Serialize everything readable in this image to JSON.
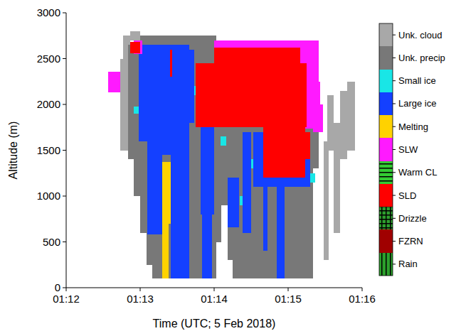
{
  "chart_data": {
    "type": "heatmap",
    "x_label": "Time (UTC; 5 Feb 2018)",
    "y_label": "Altitude (m)",
    "xlim": [
      0,
      240
    ],
    "xticks": [
      {
        "value": 0,
        "label": "01:12"
      },
      {
        "value": 60,
        "label": "01:13"
      },
      {
        "value": 120,
        "label": "01:14"
      },
      {
        "value": 180,
        "label": "01:15"
      },
      {
        "value": 240,
        "label": "01:16"
      }
    ],
    "ylim": [
      0,
      3000
    ],
    "yticks": [
      0,
      500,
      1000,
      1500,
      2000,
      2500,
      3000
    ],
    "legend": "right",
    "series": [
      {
        "name": "Unk. cloud",
        "color": "#a8a8a8",
        "values": [
          [
            44,
            50,
            1500,
            2500
          ],
          [
            46,
            52,
            2500,
            2750
          ],
          [
            52,
            60,
            2700,
            2800
          ],
          [
            209,
            213,
            300,
            1600
          ],
          [
            212,
            217,
            1500,
            2100
          ],
          [
            217,
            222,
            600,
            1800
          ],
          [
            222,
            228,
            1400,
            2150
          ],
          [
            228,
            234,
            1500,
            2250
          ]
        ]
      },
      {
        "name": "Unk. precip",
        "color": "#787878",
        "values": [
          [
            50,
            55,
            1400,
            2650
          ],
          [
            55,
            60,
            1000,
            2700
          ],
          [
            60,
            65,
            600,
            2750
          ],
          [
            65,
            70,
            250,
            2750
          ],
          [
            70,
            122,
            100,
            2750
          ],
          [
            122,
            135,
            900,
            2700
          ],
          [
            122,
            126,
            500,
            900
          ],
          [
            131,
            135,
            300,
            900
          ],
          [
            135,
            200,
            100,
            2650
          ],
          [
            200,
            205,
            1300,
            2100
          ]
        ]
      },
      {
        "name": "Small ice",
        "color": "#19e6e6",
        "values": [
          [
            125,
            130,
            1550,
            1650
          ],
          [
            198,
            202,
            1150,
            1250
          ],
          [
            104,
            107,
            2100,
            2200
          ],
          [
            55,
            59,
            1900,
            1980
          ],
          [
            141,
            143,
            900,
            1000
          ],
          [
            150,
            152,
            1300,
            1400
          ]
        ]
      },
      {
        "name": "Large ice",
        "color": "#1440ff",
        "values": [
          [
            59,
            78,
            1600,
            2650
          ],
          [
            66,
            78,
            580,
            1600
          ],
          [
            78,
            85,
            1450,
            2650
          ],
          [
            85,
            100,
            100,
            2650
          ],
          [
            100,
            104,
            1800,
            2600
          ],
          [
            108,
            122,
            1800,
            2360
          ],
          [
            109,
            120,
            800,
            1800
          ],
          [
            110,
            118,
            100,
            800
          ],
          [
            131,
            140,
            660,
            1200
          ],
          [
            143,
            150,
            600,
            1700
          ],
          [
            152,
            198,
            1100,
            1700
          ],
          [
            171,
            177,
            100,
            1100
          ],
          [
            160,
            163,
            400,
            1100
          ]
        ]
      },
      {
        "name": "Melting",
        "color": "#ffd200",
        "values": [
          [
            78,
            85,
            700,
            1370
          ],
          [
            78,
            83,
            100,
            700
          ]
        ]
      },
      {
        "name": "SLW",
        "color": "#ff1aff",
        "values": [
          [
            34,
            44,
            2130,
            2360
          ],
          [
            120,
            205,
            2250,
            2700
          ],
          [
            190,
            206,
            1740,
            2250
          ],
          [
            200,
            208,
            1700,
            2000
          ],
          [
            55,
            62,
            2550,
            2700
          ]
        ]
      },
      {
        "name": "Warm CL",
        "color": "#33cc33",
        "marker": "hlines",
        "values": []
      },
      {
        "name": "SLD",
        "color": "#ff0000",
        "values": [
          [
            52,
            60,
            2560,
            2680
          ],
          [
            84,
            86,
            2300,
            2600
          ],
          [
            105,
            195,
            1750,
            2450
          ],
          [
            120,
            190,
            2450,
            2620
          ],
          [
            160,
            194,
            1200,
            1750
          ],
          [
            194,
            198,
            1400,
            1700
          ]
        ]
      },
      {
        "name": "Drizzle",
        "color": "#2e9e2e",
        "marker": "grid",
        "values": []
      },
      {
        "name": "FZRN",
        "color": "#a00000",
        "values": []
      },
      {
        "name": "Rain",
        "color": "#2ca02c",
        "marker": "vlines",
        "values": []
      }
    ]
  }
}
